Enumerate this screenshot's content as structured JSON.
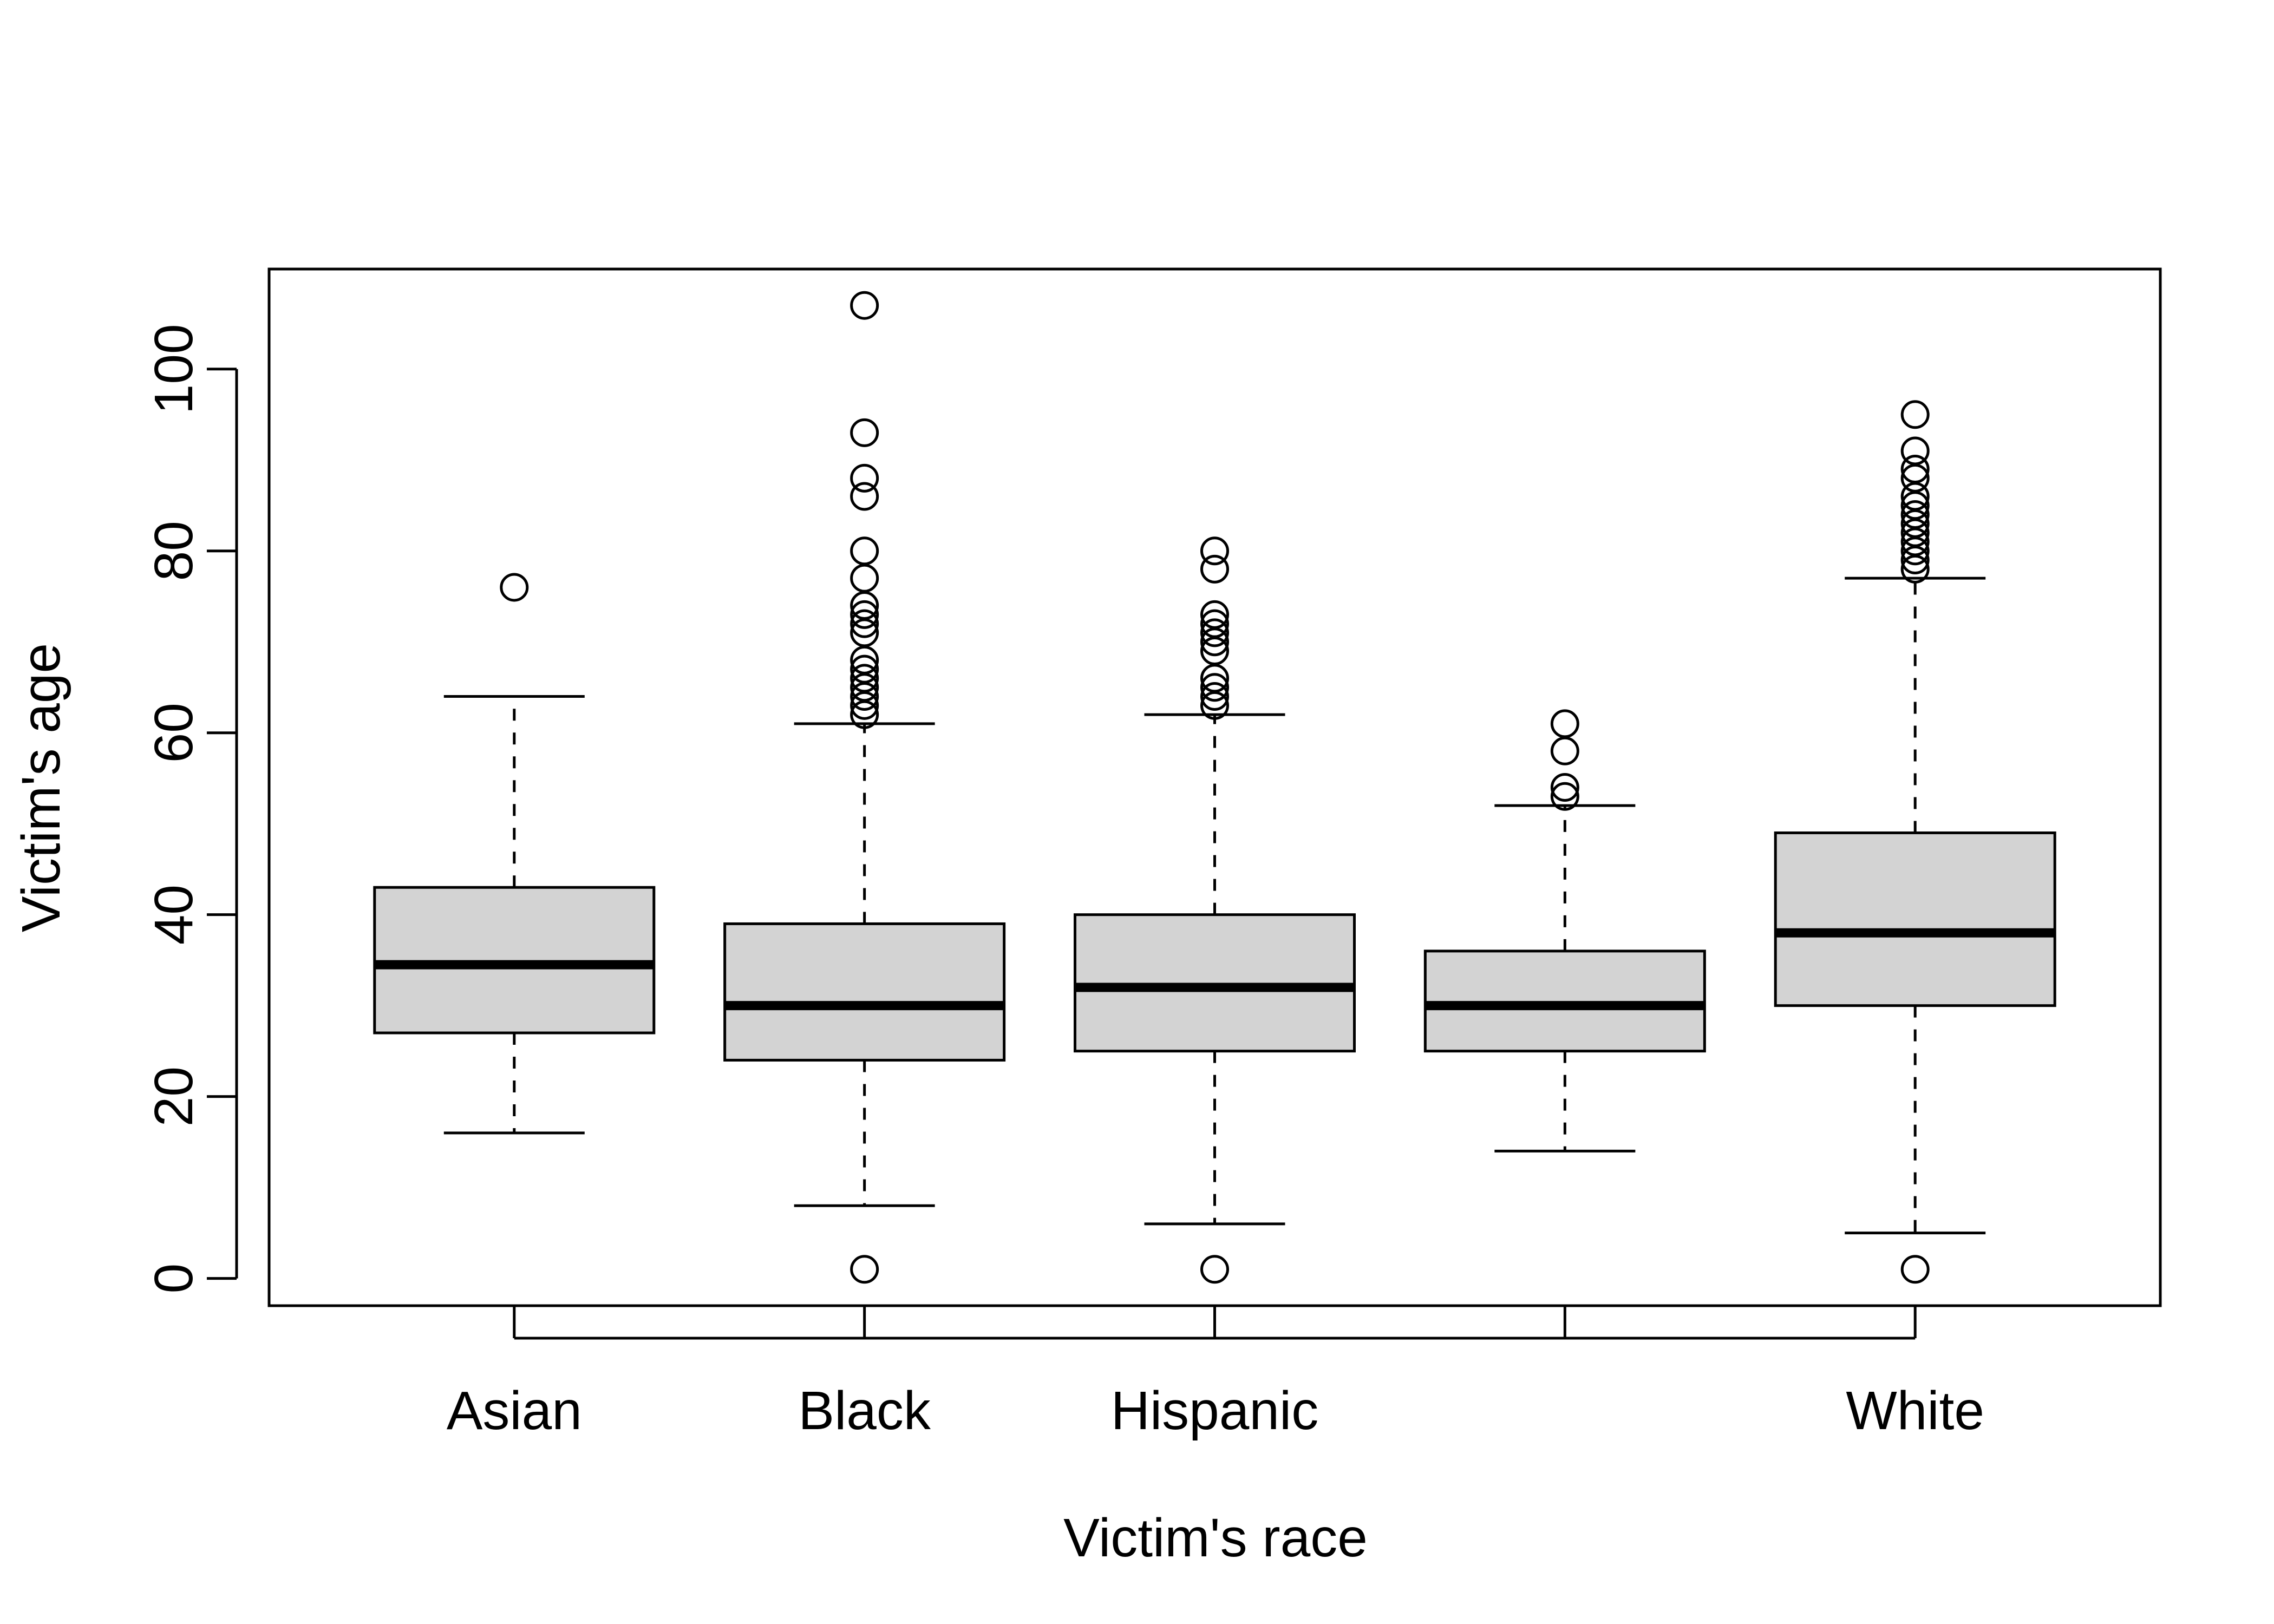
{
  "chart_data": {
    "type": "boxplot",
    "title": "",
    "xlabel": "Victim's race",
    "ylabel": "Victim's age",
    "ylim": [
      -3,
      111
    ],
    "yticks": [
      0,
      20,
      40,
      60,
      80,
      100
    ],
    "grid": false,
    "legend": "none",
    "box_fill": "#d3d3d3",
    "line_color": "#000000",
    "categories": [
      "Asian",
      "Black",
      "Hispanic",
      "",
      "White"
    ],
    "boxes": [
      {
        "category": "Asian",
        "whisker_low": 16,
        "q1": 27,
        "median": 34.5,
        "q3": 43,
        "whisker_high": 64,
        "outliers": [
          76
        ]
      },
      {
        "category": "Black",
        "whisker_low": 8,
        "q1": 24,
        "median": 30,
        "q3": 39,
        "whisker_high": 61,
        "outliers": [
          1,
          62,
          63,
          64,
          65,
          66,
          67,
          68,
          71,
          72,
          73,
          74,
          77,
          80,
          86,
          88,
          93,
          107
        ]
      },
      {
        "category": "Hispanic",
        "whisker_low": 6,
        "q1": 25,
        "median": 32,
        "q3": 40,
        "whisker_high": 62,
        "outliers": [
          1,
          63,
          64,
          65,
          66,
          69,
          70,
          71,
          72,
          73,
          78,
          80
        ]
      },
      {
        "category": "",
        "whisker_low": 14,
        "q1": 25,
        "median": 30,
        "q3": 36,
        "whisker_high": 52,
        "outliers": [
          53,
          54,
          58,
          61
        ]
      },
      {
        "category": "White",
        "whisker_low": 5,
        "q1": 30,
        "median": 38,
        "q3": 49,
        "whisker_high": 77,
        "outliers": [
          1,
          78,
          79,
          80,
          81,
          82,
          83,
          84,
          85,
          86,
          88,
          89,
          91,
          95
        ]
      }
    ]
  }
}
